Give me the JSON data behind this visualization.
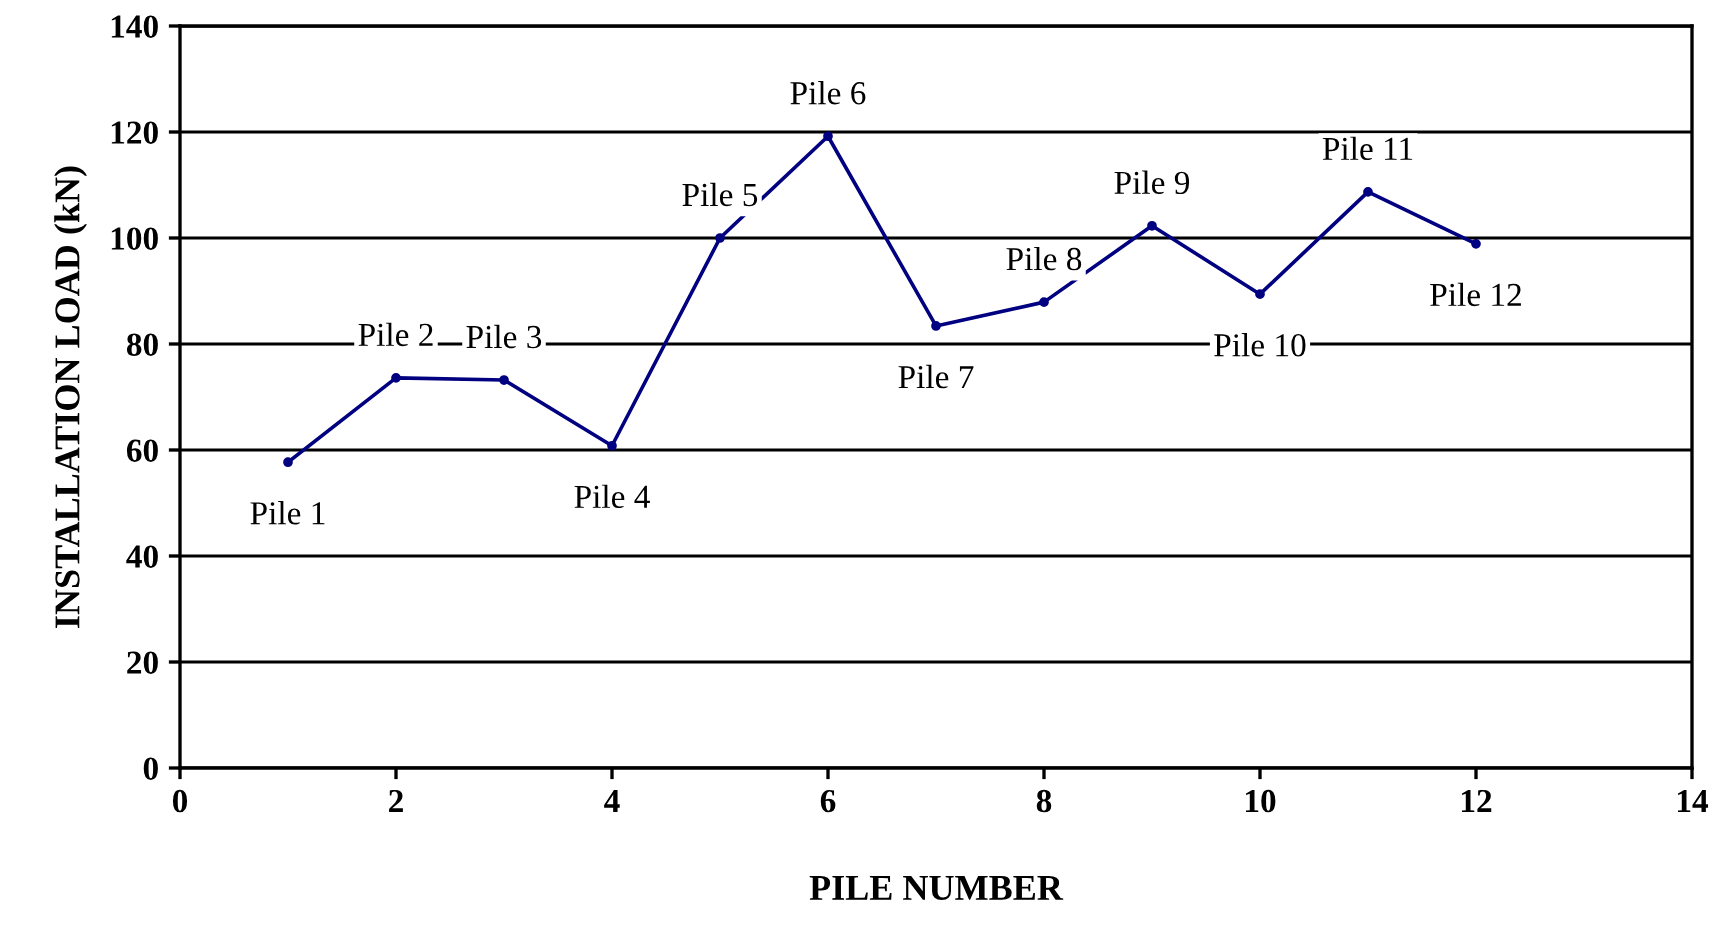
{
  "chart_data": {
    "type": "line",
    "xlabel": "PILE NUMBER",
    "ylabel": "INSTALLATION LOAD (kN)",
    "xlim": [
      0,
      14
    ],
    "xticks": [
      0,
      2,
      4,
      6,
      8,
      10,
      12,
      14
    ],
    "ylim": [
      0,
      140
    ],
    "yticks": [
      0,
      20,
      40,
      60,
      80,
      100,
      120,
      140
    ],
    "grid": "y",
    "marker": "circle",
    "line_style": "solid",
    "series": [
      {
        "color": "#000080",
        "x": [
          1,
          2,
          3,
          4,
          5,
          6,
          7,
          8,
          9,
          10,
          11,
          12
        ],
        "values": [
          57.7,
          73.6,
          73.2,
          60.8,
          100,
          119.2,
          83.4,
          87.9,
          102.3,
          89.4,
          108.7,
          98.9
        ]
      }
    ],
    "annotations": [
      {
        "text": "Pile 1",
        "x": 1,
        "y": 57.7
      },
      {
        "text": "Pile 2",
        "x": 2,
        "y": 73.6
      },
      {
        "text": "Pile 3",
        "x": 3,
        "y": 73.2
      },
      {
        "text": "Pile 4",
        "x": 4,
        "y": 60.8
      },
      {
        "text": "Pile 5",
        "x": 5,
        "y": 100
      },
      {
        "text": "Pile 6",
        "x": 6,
        "y": 119.2
      },
      {
        "text": "Pile 7",
        "x": 7,
        "y": 83.4
      },
      {
        "text": "Pile 8",
        "x": 8,
        "y": 87.9
      },
      {
        "text": "Pile 9",
        "x": 9,
        "y": 102.3
      },
      {
        "text": "Pile 10",
        "x": 10,
        "y": 89.4
      },
      {
        "text": "Pile 11",
        "x": 11,
        "y": 108.7
      },
      {
        "text": "Pile 12",
        "x": 12,
        "y": 98.9
      }
    ]
  }
}
